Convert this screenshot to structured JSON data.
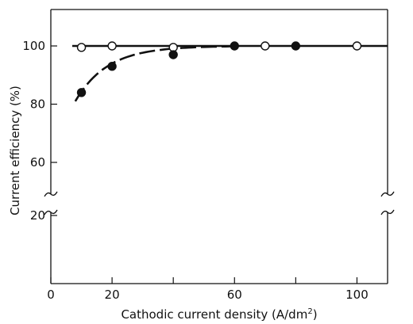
{
  "chart_data": {
    "type": "scatter",
    "title": "",
    "xlabel": "Cathodic current density (A/dm",
    "xlabel_sup": "2",
    "xlabel_end": ")",
    "ylabel": "Current efficiency (%)",
    "xlim": [
      0,
      110
    ],
    "ylim_upper_segment": [
      60,
      105
    ],
    "ylim_lower_segment": [
      0,
      25
    ],
    "y_axis_break": "between 25 and 50",
    "x_ticks": [
      {
        "value": 0,
        "label": "0"
      },
      {
        "value": 20,
        "label": "20"
      },
      {
        "value": 40,
        "label": ""
      },
      {
        "value": 60,
        "label": "60"
      },
      {
        "value": 80,
        "label": ""
      },
      {
        "value": 100,
        "label": "100"
      }
    ],
    "y_ticks": [
      {
        "value": 20,
        "label": "20"
      },
      {
        "value": 60,
        "label": "60"
      },
      {
        "value": 80,
        "label": "80"
      },
      {
        "value": 100,
        "label": "100"
      }
    ],
    "grid": false,
    "series": [
      {
        "marker": "open-circle",
        "points": [
          [
            10,
            99.5
          ],
          [
            20,
            100
          ],
          [
            40,
            99.5
          ],
          [
            70,
            100
          ],
          [
            100,
            100
          ]
        ],
        "fit_line": "horizontal at 100 from x=7 to x=110",
        "line_style": "solid"
      },
      {
        "marker": "filled-circle",
        "points": [
          [
            10,
            84
          ],
          [
            20,
            93
          ],
          [
            40,
            97
          ],
          [
            60,
            100
          ],
          [
            80,
            100
          ]
        ],
        "fit_line": "curve rising from 81 at x=8 to 100 near x=50, then 100",
        "line_style": "dashed"
      }
    ],
    "colors": {
      "ink": "#111111",
      "background": "#ffffff"
    }
  }
}
